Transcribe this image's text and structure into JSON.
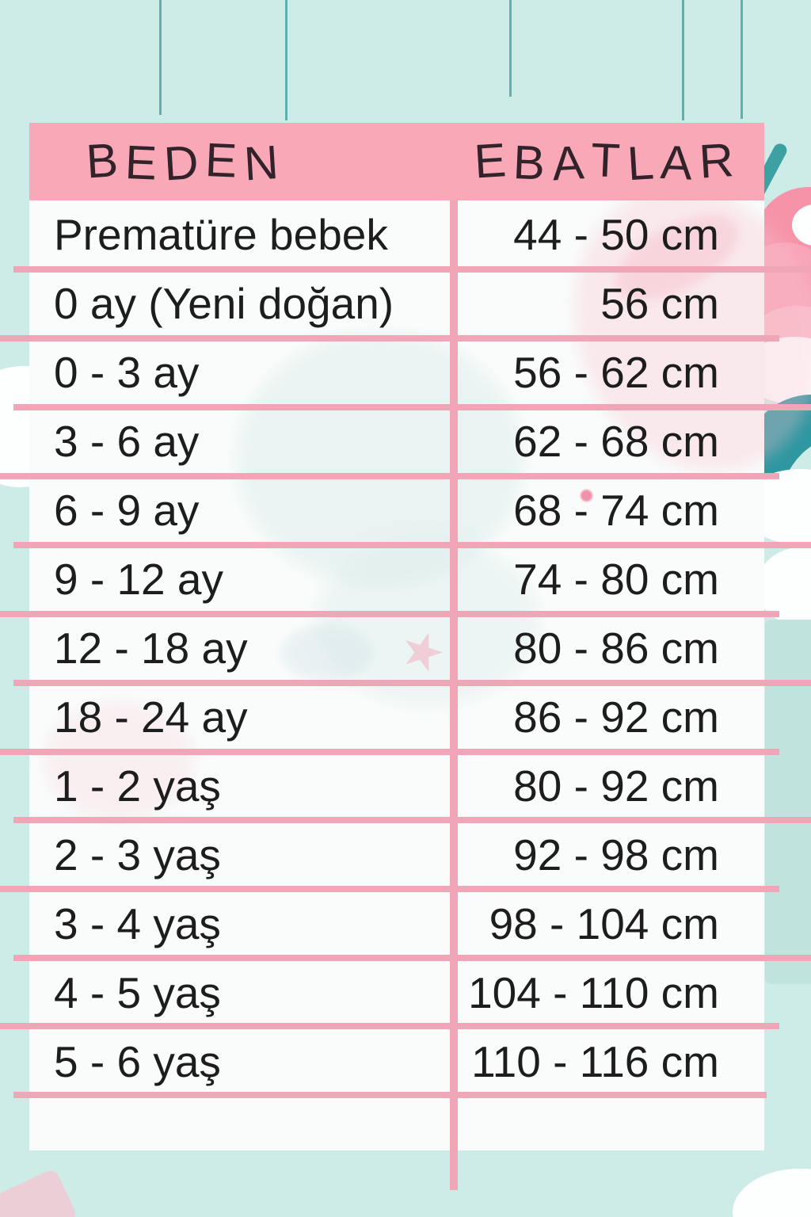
{
  "title": "Baby clothing size chart (Turkish)",
  "colors": {
    "bg": "#cdebe7",
    "header_pink": "#f8a8b7",
    "line_pink": "#f1a6b8",
    "table_white": "#f9fcfb",
    "text_dark": "#1d1d1d",
    "header_text": "#32222a",
    "teal_line": "#4aa7a3",
    "teal_shape": "#2e97a0",
    "leaf_teal": "#3da0a2",
    "pink_shape": "#f693a9",
    "pink_soft": "#f9c2cf",
    "cloud_white": "#fdfffe",
    "mint_shade": "#c0e3de"
  },
  "decor": {
    "star_glyph": "★"
  },
  "table": {
    "headers": {
      "size": "BEDEN",
      "dimensions": "EBATLAR"
    },
    "rows": [
      {
        "size": "Prematüre bebek",
        "range": "44 - 50 cm"
      },
      {
        "size": "0 ay (Yeni doğan)",
        "range": "56 cm"
      },
      {
        "size": "0 - 3 ay",
        "range": "56 - 62 cm"
      },
      {
        "size": "3 - 6 ay",
        "range": "62 - 68 cm"
      },
      {
        "size": "6 - 9 ay",
        "range": "68 - 74 cm"
      },
      {
        "size": "9 - 12 ay",
        "range": "74 - 80 cm"
      },
      {
        "size": "12 - 18 ay",
        "range": "80 - 86 cm"
      },
      {
        "size": "18 - 24 ay",
        "range": "86 - 92 cm"
      },
      {
        "size": "1 - 2 yaş",
        "range": "80 - 92 cm"
      },
      {
        "size": "2 - 3 yaş",
        "range": "92 - 98 cm"
      },
      {
        "size": "3 - 4 yaş",
        "range": "98 - 104 cm"
      },
      {
        "size": "4 - 5 yaş",
        "range": "104 - 110 cm"
      },
      {
        "size": "5 - 6 yaş",
        "range": "110 - 116 cm"
      }
    ]
  },
  "chart_data": {
    "type": "table",
    "title": "BEDEN / EBATLAR",
    "columns": [
      "BEDEN",
      "EBATLAR"
    ],
    "rows": [
      [
        "Prematüre bebek",
        "44 - 50 cm"
      ],
      [
        "0 ay (Yeni doğan)",
        "56 cm"
      ],
      [
        "0 - 3 ay",
        "56 - 62 cm"
      ],
      [
        "3 - 6 ay",
        "62 - 68 cm"
      ],
      [
        "6 - 9 ay",
        "68 - 74 cm"
      ],
      [
        "9 - 12 ay",
        "74 - 80 cm"
      ],
      [
        "12 - 18 ay",
        "80 - 86 cm"
      ],
      [
        "18 - 24 ay",
        "86 - 92 cm"
      ],
      [
        "1 - 2 yaş",
        "80 - 92 cm"
      ],
      [
        "2 - 3 yaş",
        "92 - 98 cm"
      ],
      [
        "3 - 4 yaş",
        "98 - 104 cm"
      ],
      [
        "4 - 5 yaş",
        "104 - 110 cm"
      ],
      [
        "5 - 6 yaş",
        "110 - 116 cm"
      ]
    ]
  }
}
